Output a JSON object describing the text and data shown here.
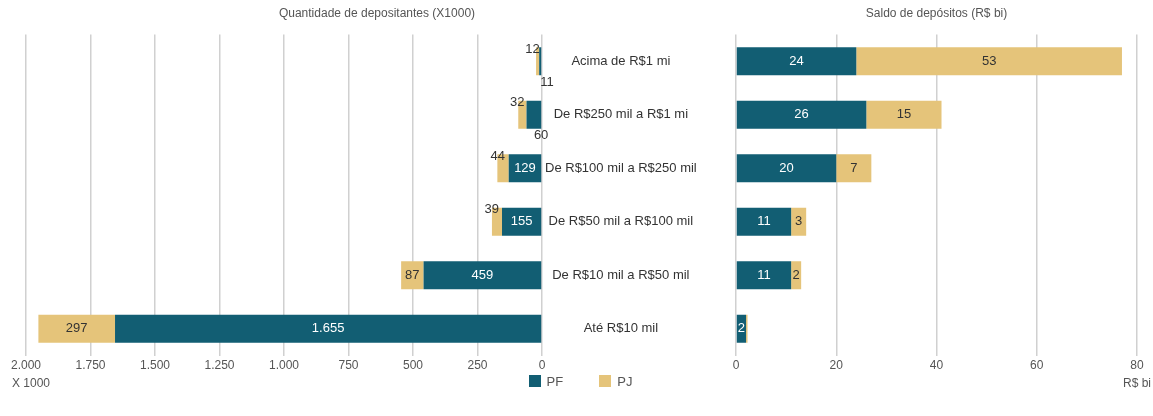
{
  "chart_data": [
    {
      "type": "bar",
      "orientation": "horizontal",
      "stacked": true,
      "title": "Quantidade de depositantes (X1000)",
      "xlabel": "X 1000",
      "categories": [
        "Acima de R$1 mi",
        "De R$250 mil a R$1 mi",
        "De R$100 mil a R$250 mil",
        "De R$50 mil a R$100 mil",
        "De R$10 mil a R$50 mil",
        "Até R$10 mil"
      ],
      "series": [
        {
          "name": "PF",
          "color": "#125e73",
          "values": [
            11,
            60,
            129,
            155,
            459,
            1655
          ],
          "value_labels": [
            "11",
            "60",
            "129",
            "155",
            "459",
            "1.655"
          ]
        },
        {
          "name": "PJ",
          "color": "#e5c47a",
          "values": [
            12,
            32,
            44,
            39,
            87,
            297
          ],
          "value_labels": [
            "12",
            "32",
            "44",
            "39",
            "87",
            "297"
          ]
        }
      ],
      "legend": "bottom",
      "xlim": [
        2000,
        0
      ],
      "xticks": [
        {
          "value": 2000,
          "label": "2.000"
        },
        {
          "value": 1750,
          "label": "1.750"
        },
        {
          "value": 1500,
          "label": "1.500"
        },
        {
          "value": 1250,
          "label": "1.250"
        },
        {
          "value": 1000,
          "label": "1.000"
        },
        750,
        500,
        250,
        0
      ],
      "grid": "x"
    },
    {
      "type": "bar",
      "orientation": "horizontal",
      "stacked": true,
      "title": "Saldo de depósitos (R$ bi)",
      "xlabel": "R$ bi",
      "categories": [
        "Acima de R$1 mi",
        "De R$250 mil a R$1 mi",
        "De R$100 mil a R$250 mil",
        "De R$50 mil a R$100 mil",
        "De R$10 mil a R$50 mil",
        "Até R$10 mil"
      ],
      "series": [
        {
          "name": "PF",
          "color": "#125e73",
          "values": [
            24,
            26,
            20,
            11,
            11,
            2
          ],
          "value_labels": [
            "24",
            "26",
            "20",
            "11",
            "11",
            "2"
          ]
        },
        {
          "name": "PJ",
          "color": "#e5c47a",
          "values": [
            53,
            15,
            7,
            3,
            2,
            0.3
          ],
          "value_labels": [
            "53",
            "15",
            "7",
            "3",
            "2",
            null
          ]
        }
      ],
      "xlim": [
        0,
        80
      ],
      "xticks": [
        0,
        20,
        40,
        60,
        80
      ],
      "grid": "x",
      "tick_labels": "x"
    }
  ]
}
